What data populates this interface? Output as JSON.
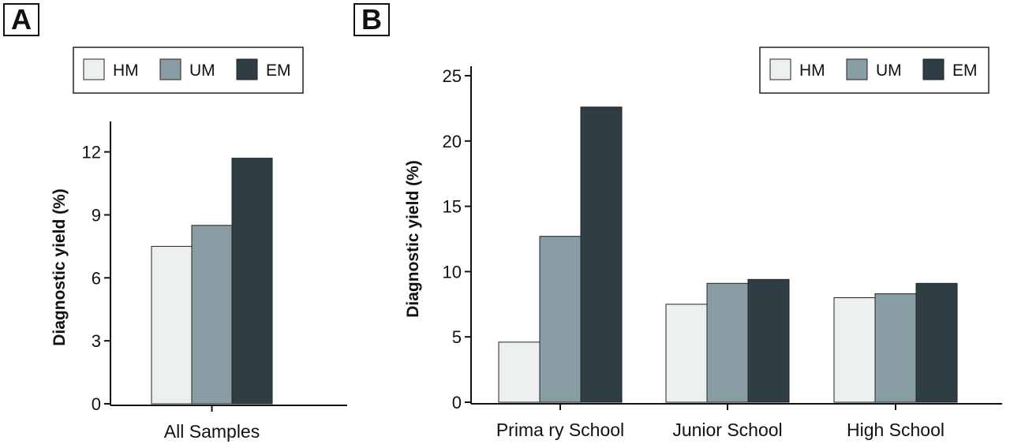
{
  "panels": {
    "a": "A",
    "b": "B"
  },
  "colors": {
    "HM": "#edf0f1",
    "UM": "#889ea4",
    "EM": "#2f3e45"
  },
  "chart_data": [
    {
      "type": "bar",
      "title": "",
      "xlabel": "",
      "ylabel": "Diagnostic yield (%)",
      "ylim": [
        0,
        13
      ],
      "yticks": [
        0,
        3,
        6,
        9,
        12
      ],
      "categories": [
        "All Samples"
      ],
      "series": [
        {
          "name": "HM",
          "values": [
            7.5
          ]
        },
        {
          "name": "UM",
          "values": [
            8.5
          ]
        },
        {
          "name": "EM",
          "values": [
            11.7
          ]
        }
      ],
      "legend": "top",
      "grid": false
    },
    {
      "type": "bar",
      "title": "",
      "xlabel": "",
      "ylabel": "Diagnostic yield (%)",
      "ylim": [
        0,
        25
      ],
      "yticks": [
        0,
        5,
        10,
        15,
        20,
        25
      ],
      "categories": [
        "Prima ry School",
        "Junior School",
        "High School"
      ],
      "series": [
        {
          "name": "HM",
          "values": [
            4.6,
            7.5,
            8.0
          ]
        },
        {
          "name": "UM",
          "values": [
            12.7,
            9.1,
            8.3
          ]
        },
        {
          "name": "EM",
          "values": [
            22.6,
            9.4,
            9.1
          ]
        }
      ],
      "legend": "top-right",
      "grid": false
    }
  ]
}
